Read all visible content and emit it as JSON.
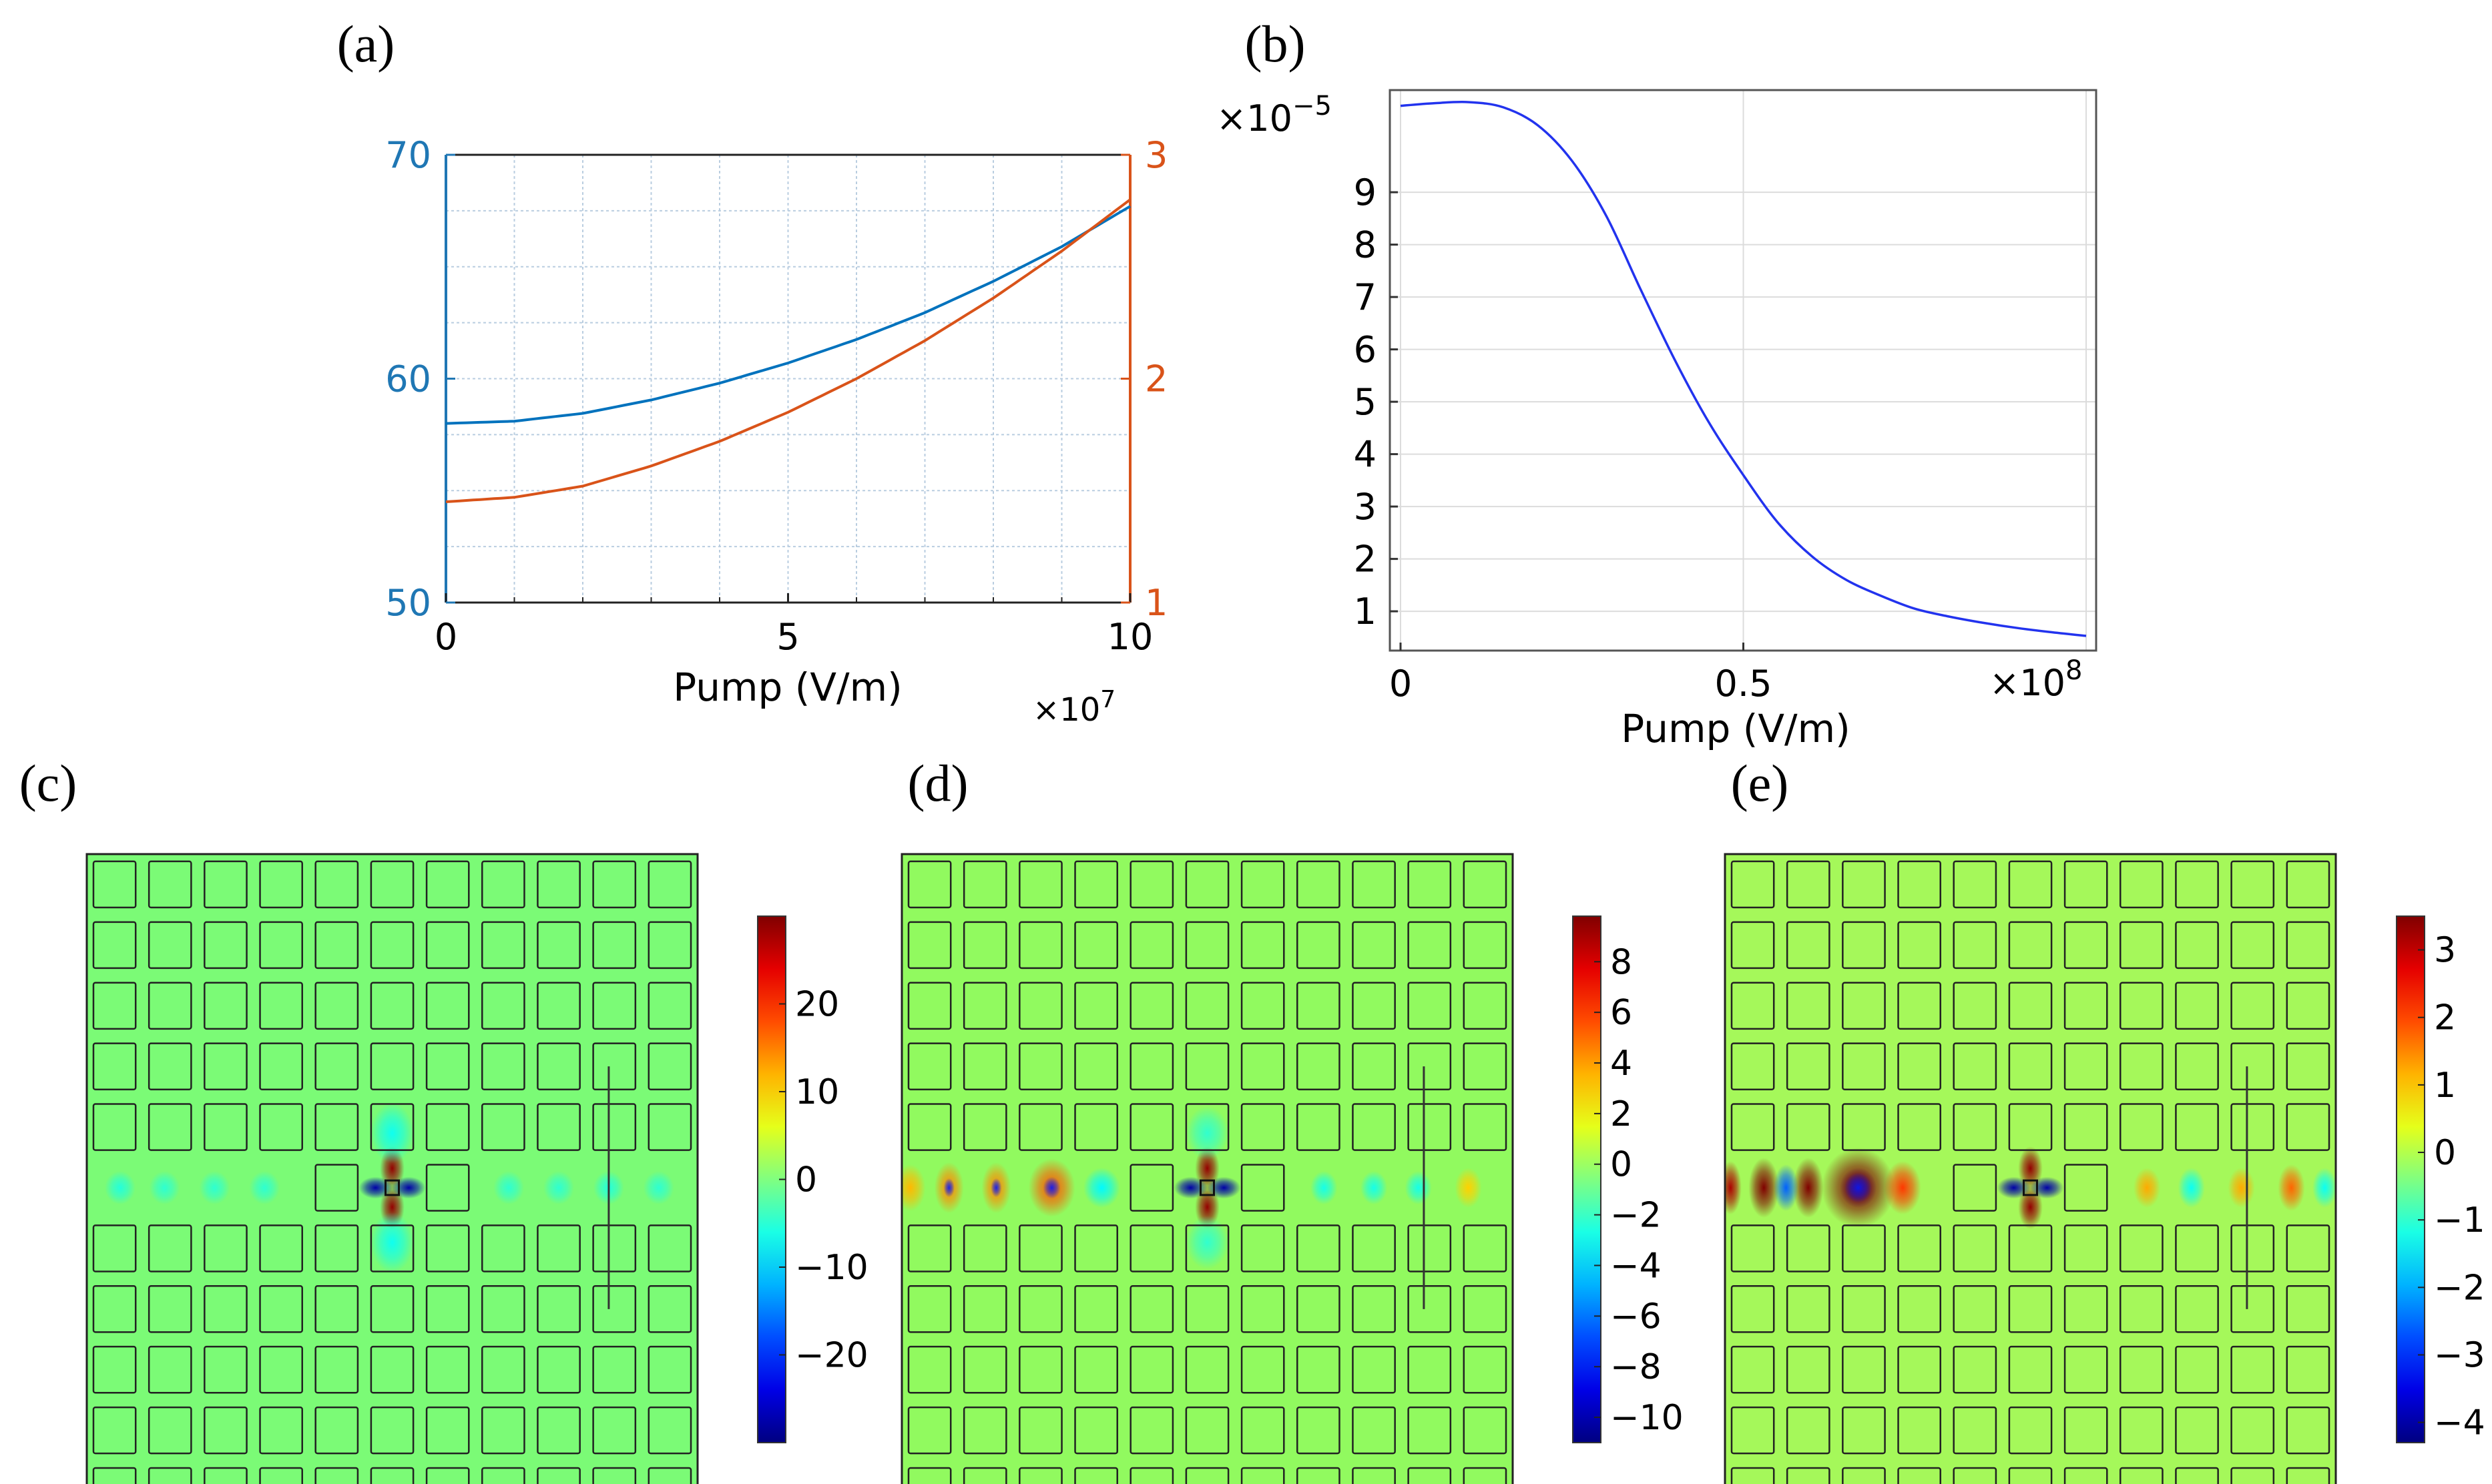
{
  "chart_data": [
    {
      "id": "a",
      "panel_label": "(a)",
      "type": "line",
      "xlabel": "Pump (V/m)",
      "x_multiplier": "×10",
      "x_multiplier_exp": "7",
      "xlim": [
        0,
        10
      ],
      "x_ticks": [
        0,
        5,
        10
      ],
      "x_tick_labels": [
        "0",
        "5",
        "10"
      ],
      "left_axis": {
        "ylim": [
          50,
          70
        ],
        "ticks": [
          50,
          60,
          70
        ],
        "tick_labels": [
          "50",
          "60",
          "70"
        ],
        "color": "#1f77b4"
      },
      "right_axis": {
        "ylim": [
          1,
          3
        ],
        "ticks": [
          1,
          2,
          3
        ],
        "tick_labels": [
          "1",
          "2",
          "3"
        ],
        "color": "#d95319"
      },
      "grid": true,
      "series": [
        {
          "name": "left-axis curve",
          "axis": "left",
          "color": "#0072bd",
          "x": [
            0,
            1,
            2,
            3,
            4,
            5,
            6,
            7,
            8,
            9,
            10
          ],
          "y": [
            58.0,
            58.1,
            58.45,
            59.05,
            59.8,
            60.7,
            61.75,
            62.95,
            64.35,
            65.9,
            67.7
          ]
        },
        {
          "name": "right-axis curve",
          "axis": "right",
          "color": "#d95319",
          "x": [
            0,
            1,
            2,
            3,
            4,
            5,
            6,
            7,
            8,
            9,
            10
          ],
          "y": [
            1.45,
            1.47,
            1.52,
            1.61,
            1.72,
            1.85,
            2.0,
            2.17,
            2.36,
            2.57,
            2.8
          ]
        }
      ]
    },
    {
      "id": "b",
      "panel_label": "(b)",
      "type": "line",
      "xlabel": "Pump (V/m)",
      "x_multiplier": "×10",
      "x_multiplier_exp": "8",
      "y_multiplier": "×10",
      "y_multiplier_exp": "−5",
      "xlim": [
        0,
        1
      ],
      "x_ticks": [
        0,
        0.5
      ],
      "x_tick_labels": [
        "0",
        "0.5"
      ],
      "ylim": [
        0.25,
        10.95
      ],
      "y_ticks": [
        1,
        2,
        3,
        4,
        5,
        6,
        7,
        8,
        9
      ],
      "y_tick_labels": [
        "1",
        "2",
        "3",
        "4",
        "5",
        "6",
        "7",
        "8",
        "9"
      ],
      "grid": true,
      "series": [
        {
          "name": "curve",
          "color": "#2233ee",
          "x": [
            0,
            0.05,
            0.1,
            0.15,
            0.2,
            0.25,
            0.3,
            0.35,
            0.4,
            0.45,
            0.5,
            0.55,
            0.6,
            0.65,
            0.7,
            0.75,
            0.8,
            0.85,
            0.9,
            0.95,
            1.0
          ],
          "y": [
            10.65,
            10.7,
            10.72,
            10.62,
            10.28,
            9.6,
            8.55,
            7.15,
            5.8,
            4.6,
            3.6,
            2.7,
            2.05,
            1.6,
            1.3,
            1.05,
            0.9,
            0.78,
            0.68,
            0.6,
            0.53
          ]
        }
      ]
    },
    {
      "id": "c",
      "panel_label": "(c)",
      "type": "heatmap",
      "background": "#7bfb76",
      "colorbar": {
        "range": [
          -30,
          30
        ],
        "ticks": [
          -20,
          -10,
          0,
          10,
          20
        ],
        "tick_labels": [
          "−20",
          "−10",
          "0",
          "10",
          "20"
        ]
      },
      "field_blobs": [
        {
          "col": 5.5,
          "row": 5.5,
          "amp": 1.0,
          "w": 0.3,
          "h": 0.3,
          "kind": "quad"
        },
        {
          "col": 5.5,
          "row": 4.6,
          "amp": -0.22,
          "w": 0.35,
          "h": 0.45,
          "kind": "spot"
        },
        {
          "col": 5.5,
          "row": 6.4,
          "amp": -0.22,
          "w": 0.35,
          "h": 0.45,
          "kind": "spot"
        },
        {
          "col": 0.6,
          "row": 5.5,
          "amp": -0.18,
          "w": 0.25,
          "h": 0.25,
          "kind": "spot"
        },
        {
          "col": 1.4,
          "row": 5.5,
          "amp": -0.16,
          "w": 0.25,
          "h": 0.25,
          "kind": "spot"
        },
        {
          "col": 2.3,
          "row": 5.5,
          "amp": -0.16,
          "w": 0.25,
          "h": 0.25,
          "kind": "spot"
        },
        {
          "col": 3.2,
          "row": 5.5,
          "amp": -0.16,
          "w": 0.25,
          "h": 0.25,
          "kind": "spot"
        },
        {
          "col": 7.6,
          "row": 5.5,
          "amp": -0.16,
          "w": 0.25,
          "h": 0.25,
          "kind": "spot"
        },
        {
          "col": 8.5,
          "row": 5.5,
          "amp": -0.16,
          "w": 0.25,
          "h": 0.25,
          "kind": "spot"
        },
        {
          "col": 9.4,
          "row": 5.5,
          "amp": -0.18,
          "w": 0.25,
          "h": 0.25,
          "kind": "spot"
        },
        {
          "col": 10.3,
          "row": 5.5,
          "amp": -0.16,
          "w": 0.25,
          "h": 0.25,
          "kind": "spot"
        }
      ]
    },
    {
      "id": "d",
      "panel_label": "(d)",
      "type": "heatmap",
      "background": "#91fa5f",
      "colorbar": {
        "range": [
          -11,
          9.8
        ],
        "ticks": [
          -10,
          -8,
          -6,
          -4,
          -2,
          0,
          2,
          4,
          6,
          8
        ],
        "tick_labels": [
          "−10",
          "−8",
          "−6",
          "−4",
          "−2",
          "0",
          "2",
          "4",
          "6",
          "8"
        ]
      },
      "field_blobs": [
        {
          "col": 5.5,
          "row": 5.5,
          "amp": 1.0,
          "w": 0.3,
          "h": 0.3,
          "kind": "quad"
        },
        {
          "col": 5.5,
          "row": 4.6,
          "amp": -0.2,
          "w": 0.35,
          "h": 0.4,
          "kind": "spot"
        },
        {
          "col": 5.5,
          "row": 6.4,
          "amp": -0.2,
          "w": 0.35,
          "h": 0.4,
          "kind": "spot"
        },
        {
          "col": 0.15,
          "row": 5.5,
          "amp": 0.35,
          "w": 0.25,
          "h": 0.35,
          "kind": "spot"
        },
        {
          "col": 0.85,
          "row": 5.5,
          "amp": 0.45,
          "w": 0.22,
          "h": 0.35,
          "kind": "ring"
        },
        {
          "col": 1.7,
          "row": 5.5,
          "amp": 0.45,
          "w": 0.22,
          "h": 0.35,
          "kind": "ring"
        },
        {
          "col": 2.7,
          "row": 5.5,
          "amp": 0.55,
          "w": 0.35,
          "h": 0.4,
          "kind": "ring"
        },
        {
          "col": 3.6,
          "row": 5.5,
          "amp": -0.3,
          "w": 0.3,
          "h": 0.3,
          "kind": "spot"
        },
        {
          "col": 7.6,
          "row": 5.5,
          "amp": -0.25,
          "w": 0.22,
          "h": 0.25,
          "kind": "spot"
        },
        {
          "col": 8.5,
          "row": 5.5,
          "amp": -0.25,
          "w": 0.22,
          "h": 0.25,
          "kind": "spot"
        },
        {
          "col": 9.3,
          "row": 5.5,
          "amp": -0.25,
          "w": 0.22,
          "h": 0.25,
          "kind": "spot"
        },
        {
          "col": 10.2,
          "row": 5.5,
          "amp": 0.3,
          "w": 0.22,
          "h": 0.3,
          "kind": "spot"
        }
      ]
    },
    {
      "id": "e",
      "panel_label": "(e)",
      "type": "heatmap",
      "background": "#a5f85a",
      "colorbar": {
        "range": [
          -4.3,
          3.5
        ],
        "ticks": [
          -4,
          -3,
          -2,
          -1,
          0,
          1,
          2,
          3
        ],
        "tick_labels": [
          "−4",
          "−3",
          "−2",
          "−1",
          "0",
          "1",
          "2",
          "3"
        ]
      },
      "field_blobs": [
        {
          "col": 5.5,
          "row": 5.5,
          "amp": 1.0,
          "w": 0.3,
          "h": 0.3,
          "kind": "quad"
        },
        {
          "col": 0.1,
          "row": 5.5,
          "amp": 0.9,
          "w": 0.18,
          "h": 0.4,
          "kind": "spot"
        },
        {
          "col": 0.7,
          "row": 5.5,
          "amp": 1.0,
          "w": 0.25,
          "h": 0.45,
          "kind": "spot"
        },
        {
          "col": 1.5,
          "row": 5.5,
          "amp": 1.0,
          "w": 0.25,
          "h": 0.45,
          "kind": "spot"
        },
        {
          "col": 1.1,
          "row": 5.5,
          "amp": -0.6,
          "w": 0.2,
          "h": 0.35,
          "kind": "spot"
        },
        {
          "col": 2.4,
          "row": 5.5,
          "amp": -0.9,
          "w": 0.3,
          "h": 0.3,
          "kind": "spot"
        },
        {
          "col": 2.4,
          "row": 5.5,
          "amp": 1.0,
          "w": 0.55,
          "h": 0.55,
          "kind": "ring"
        },
        {
          "col": 3.2,
          "row": 5.5,
          "amp": 0.6,
          "w": 0.3,
          "h": 0.4,
          "kind": "spot"
        },
        {
          "col": 7.6,
          "row": 5.5,
          "amp": 0.35,
          "w": 0.22,
          "h": 0.3,
          "kind": "spot"
        },
        {
          "col": 8.4,
          "row": 5.5,
          "amp": -0.3,
          "w": 0.22,
          "h": 0.3,
          "kind": "spot"
        },
        {
          "col": 9.3,
          "row": 5.5,
          "amp": 0.35,
          "w": 0.22,
          "h": 0.3,
          "kind": "spot"
        },
        {
          "col": 10.2,
          "row": 5.5,
          "amp": 0.5,
          "w": 0.22,
          "h": 0.35,
          "kind": "spot"
        },
        {
          "col": 10.8,
          "row": 5.5,
          "amp": -0.3,
          "w": 0.2,
          "h": 0.3,
          "kind": "spot"
        }
      ]
    }
  ]
}
